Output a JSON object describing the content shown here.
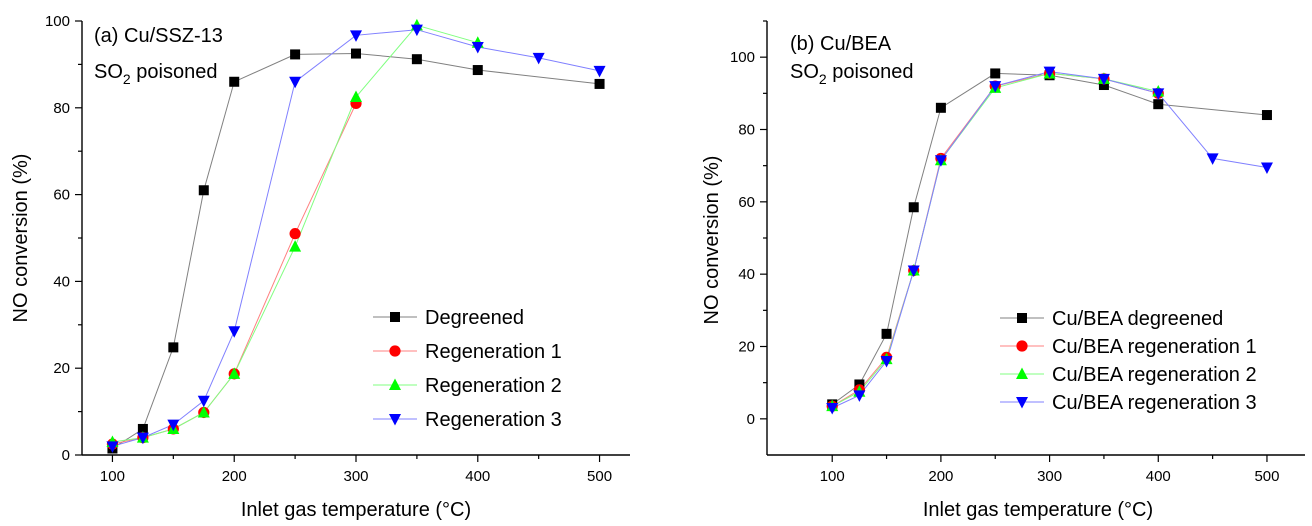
{
  "chart_data": [
    {
      "type": "line",
      "panel": "a",
      "annotation_lines": [
        "(a) Cu/SSZ-13",
        "SO2 poisoned"
      ],
      "xlabel": "Inlet gas temperature (°C)",
      "ylabel": "NO conversion (%)",
      "xlim": [
        75,
        525
      ],
      "ylim": [
        0,
        100
      ],
      "xticks": [
        100,
        200,
        300,
        400,
        500
      ],
      "yticks": [
        0,
        20,
        40,
        60,
        80,
        100
      ],
      "grid": false,
      "legend_position": "bottom-right",
      "series": [
        {
          "name": "Degreened",
          "color": "#000000",
          "line_color": "#808080",
          "marker": "square",
          "x": [
            100,
            125,
            150,
            175,
            200,
            250,
            300,
            350,
            400,
            500
          ],
          "y": [
            1.5,
            6,
            24.8,
            61,
            86,
            92.3,
            92.5,
            91.2,
            88.7,
            85.5
          ]
        },
        {
          "name": "Regeneration 1",
          "color": "#ff0000",
          "line_color": "#ff8080",
          "marker": "circle",
          "x": [
            100,
            125,
            150,
            175,
            200,
            250,
            300
          ],
          "y": [
            2.5,
            4,
            6,
            9.8,
            18.7,
            51,
            81
          ]
        },
        {
          "name": "Regeneration 2",
          "color": "#00ff00",
          "line_color": "#80ff80",
          "marker": "triangle-up",
          "x": [
            100,
            125,
            150,
            175,
            200,
            250,
            300,
            350,
            400
          ],
          "y": [
            3,
            4,
            6,
            9.8,
            18.7,
            48,
            82.5,
            99,
            95
          ]
        },
        {
          "name": "Regeneration 3",
          "color": "#0000ff",
          "line_color": "#8080ff",
          "marker": "triangle-down",
          "x": [
            100,
            125,
            150,
            175,
            200,
            250,
            300,
            350,
            400,
            450,
            500
          ],
          "y": [
            2,
            4,
            7,
            12.5,
            28.5,
            86,
            96.7,
            98,
            94,
            91.5,
            88.5
          ]
        }
      ]
    },
    {
      "type": "line",
      "panel": "b",
      "annotation_lines": [
        "(b) Cu/BEA",
        "SO2 poisoned"
      ],
      "xlabel": "Inlet gas temperature (°C)",
      "ylabel": "NO conversion (%)",
      "xlim": [
        40,
        535
      ],
      "ylim": [
        -10,
        110
      ],
      "xticks": [
        100,
        200,
        300,
        400,
        500
      ],
      "yticks": [
        0,
        20,
        40,
        60,
        80,
        100
      ],
      "grid": false,
      "legend_position": "bottom-right",
      "series": [
        {
          "name": "Cu/BEA degreened",
          "color": "#000000",
          "line_color": "#808080",
          "marker": "square",
          "x": [
            100,
            125,
            150,
            175,
            200,
            250,
            300,
            350,
            400,
            500
          ],
          "y": [
            4,
            9.5,
            23.5,
            58.5,
            86,
            95.5,
            95,
            92.3,
            87,
            84
          ]
        },
        {
          "name": "Cu/BEA regeneration 1",
          "color": "#ff0000",
          "line_color": "#ff8080",
          "marker": "circle",
          "x": [
            100,
            125,
            150,
            175,
            200,
            250,
            300,
            350,
            400
          ],
          "y": [
            3.5,
            8,
            17,
            41,
            72,
            92,
            95.5,
            94,
            90
          ]
        },
        {
          "name": "Cu/BEA regeneration 2",
          "color": "#00ff00",
          "line_color": "#80ff80",
          "marker": "triangle-up",
          "x": [
            100,
            125,
            150,
            175,
            200,
            250,
            300,
            350,
            400
          ],
          "y": [
            3.5,
            7.5,
            16.5,
            41,
            71.5,
            91.5,
            95.5,
            94,
            90.5
          ]
        },
        {
          "name": "Cu/BEA regeneration 3",
          "color": "#0000ff",
          "line_color": "#8080ff",
          "marker": "triangle-down",
          "x": [
            100,
            125,
            150,
            175,
            200,
            250,
            300,
            350,
            400,
            450,
            500
          ],
          "y": [
            3,
            6.5,
            16,
            41,
            71.5,
            92,
            96,
            94,
            90,
            72,
            69.5
          ]
        }
      ]
    }
  ]
}
